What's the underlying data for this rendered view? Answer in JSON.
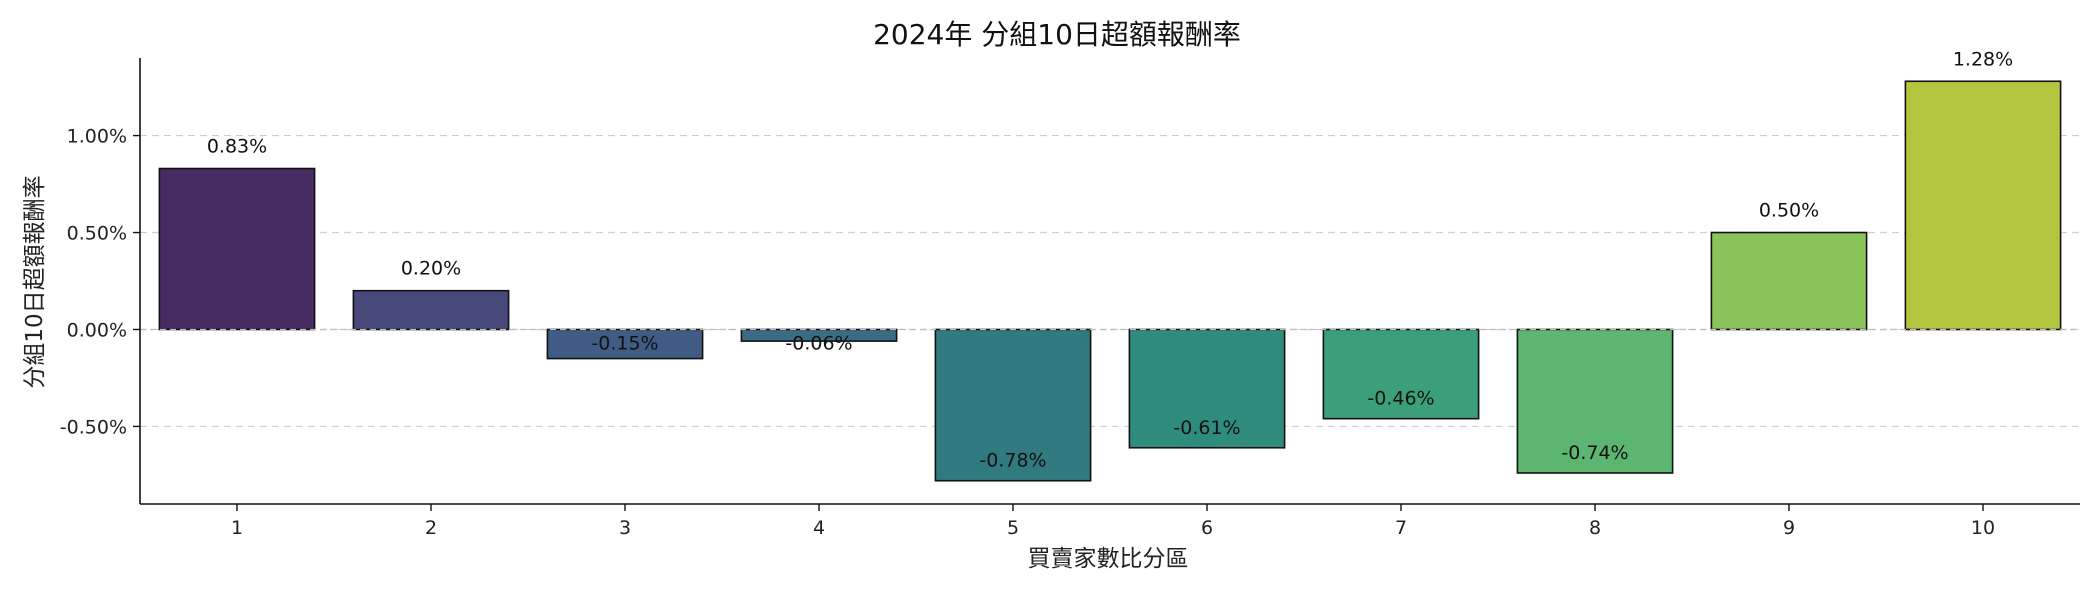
{
  "chart_data": {
    "type": "bar",
    "title": "2024年 分組10日超額報酬率",
    "xlabel": "買賣家數比分區",
    "ylabel": "分組10日超額報酬率",
    "categories": [
      "1",
      "2",
      "3",
      "4",
      "5",
      "6",
      "7",
      "8",
      "9",
      "10"
    ],
    "values": [
      0.83,
      0.2,
      -0.15,
      -0.06,
      -0.78,
      -0.61,
      -0.46,
      -0.74,
      0.5,
      1.28
    ],
    "value_labels": [
      "0.83%",
      "0.20%",
      "-0.15%",
      "-0.06%",
      "-0.78%",
      "-0.61%",
      "-0.46%",
      "-0.74%",
      "0.50%",
      "1.28%"
    ],
    "colors": [
      "#472c64",
      "#48497b",
      "#405c84",
      "#3c6b85",
      "#317a80",
      "#2f8c7d",
      "#3ba07a",
      "#5db572",
      "#8bc35b",
      "#b3c53e"
    ],
    "yticks": [
      -0.5,
      0.0,
      0.5,
      1.0
    ],
    "ytick_labels": [
      "-0.50%",
      "0.00%",
      "0.50%",
      "1.00%"
    ],
    "ylim": [
      -0.9,
      1.4
    ],
    "grid": "y-dashed",
    "legend": "none"
  }
}
